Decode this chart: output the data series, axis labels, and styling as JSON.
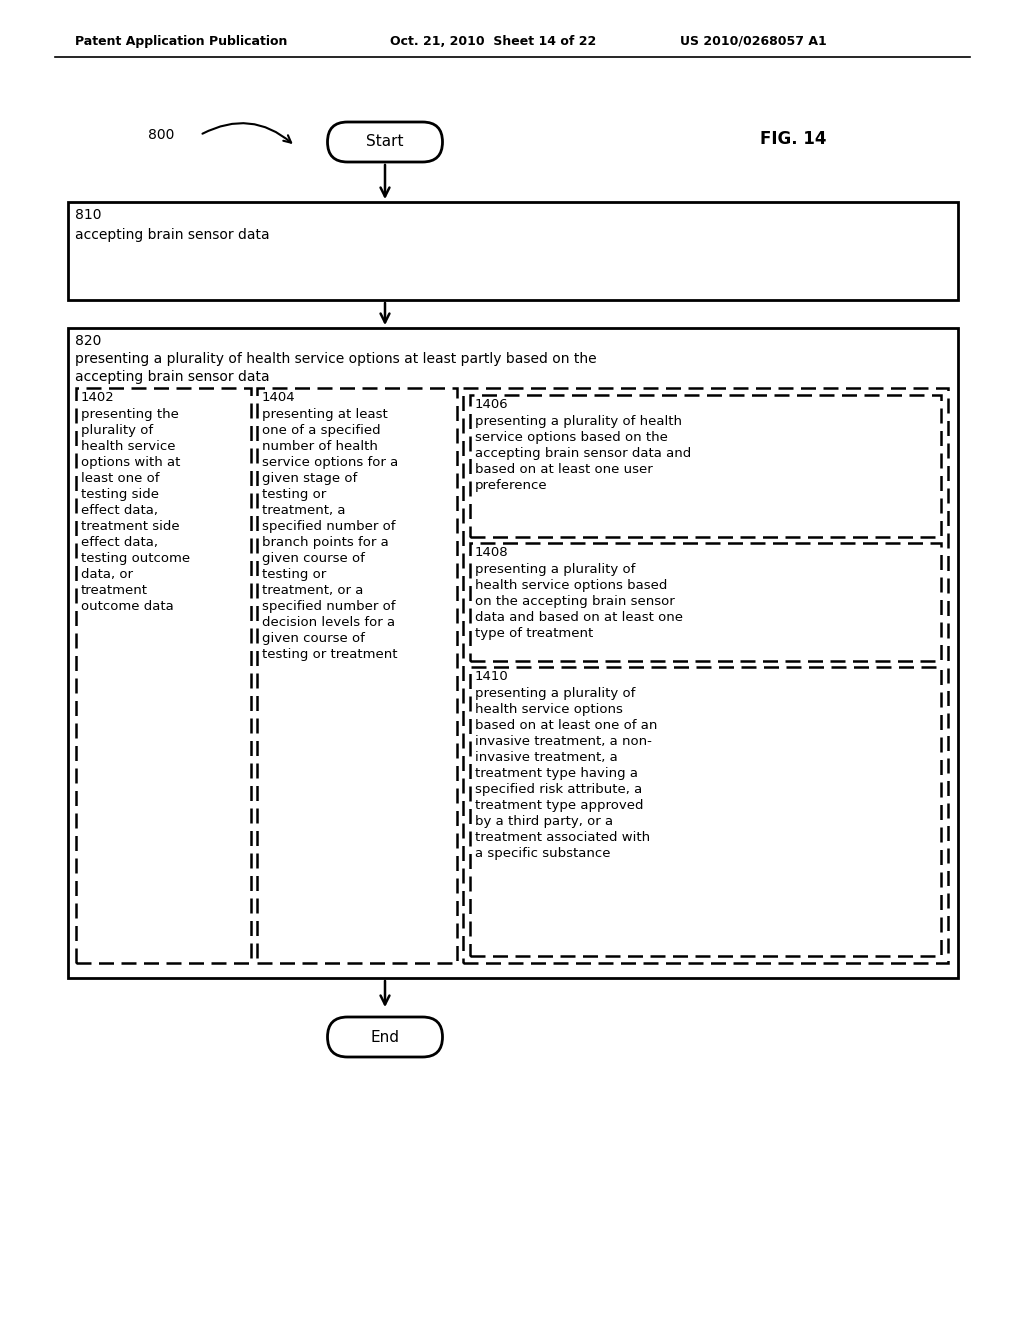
{
  "background_color": "#ffffff",
  "header_left": "Patent Application Publication",
  "header_mid": "Oct. 21, 2010  Sheet 14 of 22",
  "header_right": "US 2010/0268057 A1",
  "fig_label": "FIG. 14",
  "ref_num": "800",
  "start_label": "Start",
  "end_label": "End",
  "box810_id": "810",
  "box810_text": "accepting brain sensor data",
  "box820_id": "820",
  "box820_line1": "presenting a plurality of health service options at least partly based on the",
  "box820_line2": "accepting brain sensor data",
  "box1402_id": "1402",
  "box1402_text": "presenting the\nplurality of\nhealth service\noptions with at\nleast one of\ntesting side\neffect data,\ntreatment side\neffect data,\ntesting outcome\ndata, or\ntreatment\noutcome data",
  "box1404_id": "1404",
  "box1404_text": "presenting at least\none of a specified\nnumber of health\nservice options for a\ngiven stage of\ntesting or\ntreatment, a\nspecified number of\nbranch points for a\ngiven course of\ntesting or\ntreatment, or a\nspecified number of\ndecision levels for a\ngiven course of\ntesting or treatment",
  "box1406_id": "1406",
  "box1406_text": "presenting a plurality of health\nservice options based on the\naccepting brain sensor data and\nbased on at least one user\npreference",
  "box1408_id": "1408",
  "box1408_text": "presenting a plurality of\nhealth service options based\non the accepting brain sensor\ndata and based on at least one\ntype of treatment",
  "box1410_id": "1410",
  "box1410_text": "presenting a plurality of\nhealth service options\nbased on at least one of an\ninvasive treatment, a non-\ninvasive treatment, a\ntreatment type having a\nspecified risk attribute, a\ntreatment type approved\nby a third party, or a\ntreatment associated with\na specific substance"
}
